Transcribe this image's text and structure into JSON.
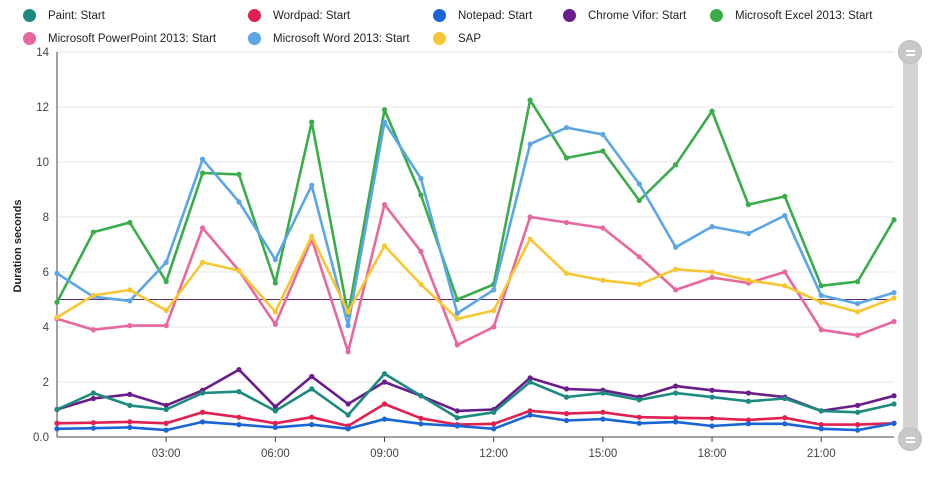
{
  "chart_data": {
    "type": "line",
    "title": "",
    "xlabel": "",
    "ylabel": "Duration seconds",
    "ylim": [
      0,
      14
    ],
    "yticks": [
      "0.0",
      "2",
      "4",
      "6",
      "8",
      "10",
      "12",
      "14"
    ],
    "xticks": [
      "03:00",
      "06:00",
      "09:00",
      "12:00",
      "15:00",
      "18:00",
      "21:00"
    ],
    "x_hours": [
      0,
      1,
      2,
      3,
      4,
      5,
      6,
      7,
      8,
      9,
      10,
      11,
      12,
      13,
      14,
      15,
      16,
      17,
      18,
      19,
      20,
      21,
      22,
      23
    ],
    "reference_line": 5.0,
    "legend_position": "top",
    "series": [
      {
        "name": "Paint: Start",
        "color": "#1b8a7f",
        "values": [
          1.0,
          1.6,
          1.15,
          1.0,
          1.6,
          1.65,
          0.95,
          1.75,
          0.8,
          2.3,
          1.5,
          0.7,
          0.9,
          2.0,
          1.45,
          1.6,
          1.35,
          1.6,
          1.45,
          1.3,
          1.4,
          0.95,
          0.9,
          1.2
        ]
      },
      {
        "name": "Wordpad: Start",
        "color": "#e0204e",
        "values": [
          0.5,
          0.52,
          0.55,
          0.5,
          0.9,
          0.72,
          0.5,
          0.72,
          0.4,
          1.2,
          0.68,
          0.45,
          0.48,
          0.95,
          0.85,
          0.9,
          0.72,
          0.7,
          0.68,
          0.62,
          0.7,
          0.45,
          0.45,
          0.5
        ]
      },
      {
        "name": "Notepad: Start",
        "color": "#1a65d6",
        "values": [
          0.3,
          0.32,
          0.35,
          0.25,
          0.55,
          0.45,
          0.35,
          0.45,
          0.3,
          0.65,
          0.48,
          0.4,
          0.3,
          0.8,
          0.6,
          0.65,
          0.5,
          0.55,
          0.4,
          0.48,
          0.48,
          0.3,
          0.25,
          0.5
        ]
      },
      {
        "name": "Chrome Vifor: Start",
        "color": "#6a1d8a",
        "values": [
          1.0,
          1.4,
          1.55,
          1.15,
          1.7,
          2.45,
          1.1,
          2.2,
          1.2,
          2.0,
          1.5,
          0.95,
          1.0,
          2.15,
          1.75,
          1.7,
          1.45,
          1.85,
          1.7,
          1.6,
          1.45,
          0.95,
          1.15,
          1.5
        ]
      },
      {
        "name": "Microsoft Excel 2013: Start",
        "color": "#3aac4a",
        "values": [
          4.9,
          7.45,
          7.8,
          5.65,
          9.6,
          9.55,
          5.6,
          11.45,
          4.45,
          11.9,
          8.8,
          5.0,
          5.55,
          12.25,
          10.15,
          10.4,
          8.6,
          9.9,
          11.85,
          8.45,
          8.75,
          5.5,
          5.65,
          7.9
        ]
      },
      {
        "name": "Microsoft PowerPoint 2013: Start",
        "color": "#e8679e",
        "values": [
          4.3,
          3.9,
          4.05,
          4.05,
          7.6,
          6.05,
          4.1,
          7.2,
          3.1,
          8.45,
          6.75,
          3.35,
          4.0,
          8.0,
          7.8,
          7.6,
          6.55,
          5.35,
          5.8,
          5.6,
          6.0,
          3.9,
          3.7,
          4.2
        ]
      },
      {
        "name": "Microsoft Word 2013: Start",
        "color": "#5aa6e6",
        "values": [
          5.95,
          5.1,
          4.95,
          6.35,
          10.1,
          8.55,
          6.45,
          9.15,
          4.05,
          11.45,
          9.4,
          4.5,
          5.35,
          10.65,
          11.25,
          11.0,
          9.2,
          6.9,
          7.65,
          7.4,
          8.05,
          5.15,
          4.85,
          5.25
        ]
      },
      {
        "name": "SAP",
        "color": "#f7c733",
        "values": [
          4.35,
          5.15,
          5.35,
          4.6,
          6.35,
          6.05,
          4.55,
          7.3,
          4.55,
          6.95,
          5.55,
          4.3,
          4.6,
          7.2,
          5.95,
          5.7,
          5.55,
          6.1,
          6.0,
          5.7,
          5.5,
          4.9,
          4.55,
          5.05
        ]
      }
    ]
  },
  "colors": {
    "reference_line": "#5b2a76",
    "grid": "#e6e6e6",
    "axis": "#444444"
  }
}
